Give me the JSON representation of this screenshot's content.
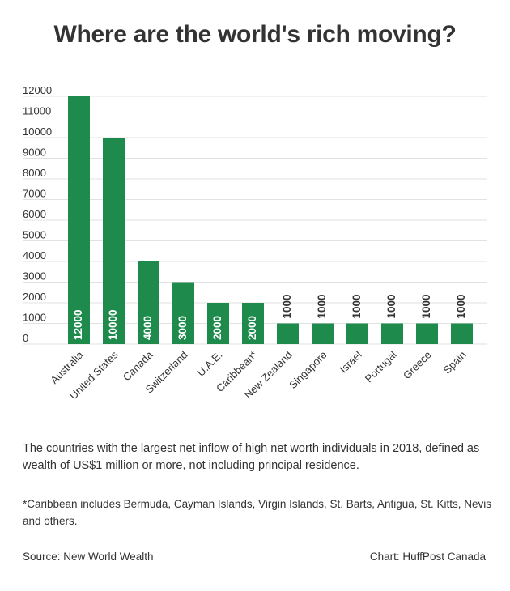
{
  "title": "Where are the world's rich moving?",
  "description": "The countries with the largest net inflow of high net worth individuals in 2018, defined as wealth of US$1 million or more, not including principal residence.",
  "footnote": "*Caribbean includes Bermuda, Cayman Islands, Virgin Islands, St. Barts, Antigua, St. Kitts, Nevis and others.",
  "source": "Source: New World Wealth",
  "credit": "Chart: HuffPost Canada",
  "colors": {
    "bar": "#1e8a4c",
    "grid": "#e2e2e2",
    "text": "#333333",
    "bar_label": "#ffffff",
    "above_label": "#333333"
  },
  "chart_data": {
    "type": "bar",
    "title": "Where are the world's rich moving?",
    "xlabel": "",
    "ylabel": "",
    "categories": [
      "Australia",
      "United States",
      "Canada",
      "Switzerland",
      "U.A.E.",
      "Caribbean*",
      "New Zealand",
      "Singapore",
      "Israel",
      "Portugal",
      "Greece",
      "Spain"
    ],
    "values": [
      12000,
      10000,
      4000,
      3000,
      2000,
      2000,
      1000,
      1000,
      1000,
      1000,
      1000,
      1000
    ],
    "ylim": [
      0,
      12000
    ],
    "yticks": [
      0,
      1000,
      2000,
      3000,
      4000,
      5000,
      6000,
      7000,
      8000,
      9000,
      10000,
      11000,
      12000
    ],
    "grid": true,
    "legend": "none",
    "data_labels": "rotated vertical; inside bar when value >= 2000, above bar otherwise"
  }
}
